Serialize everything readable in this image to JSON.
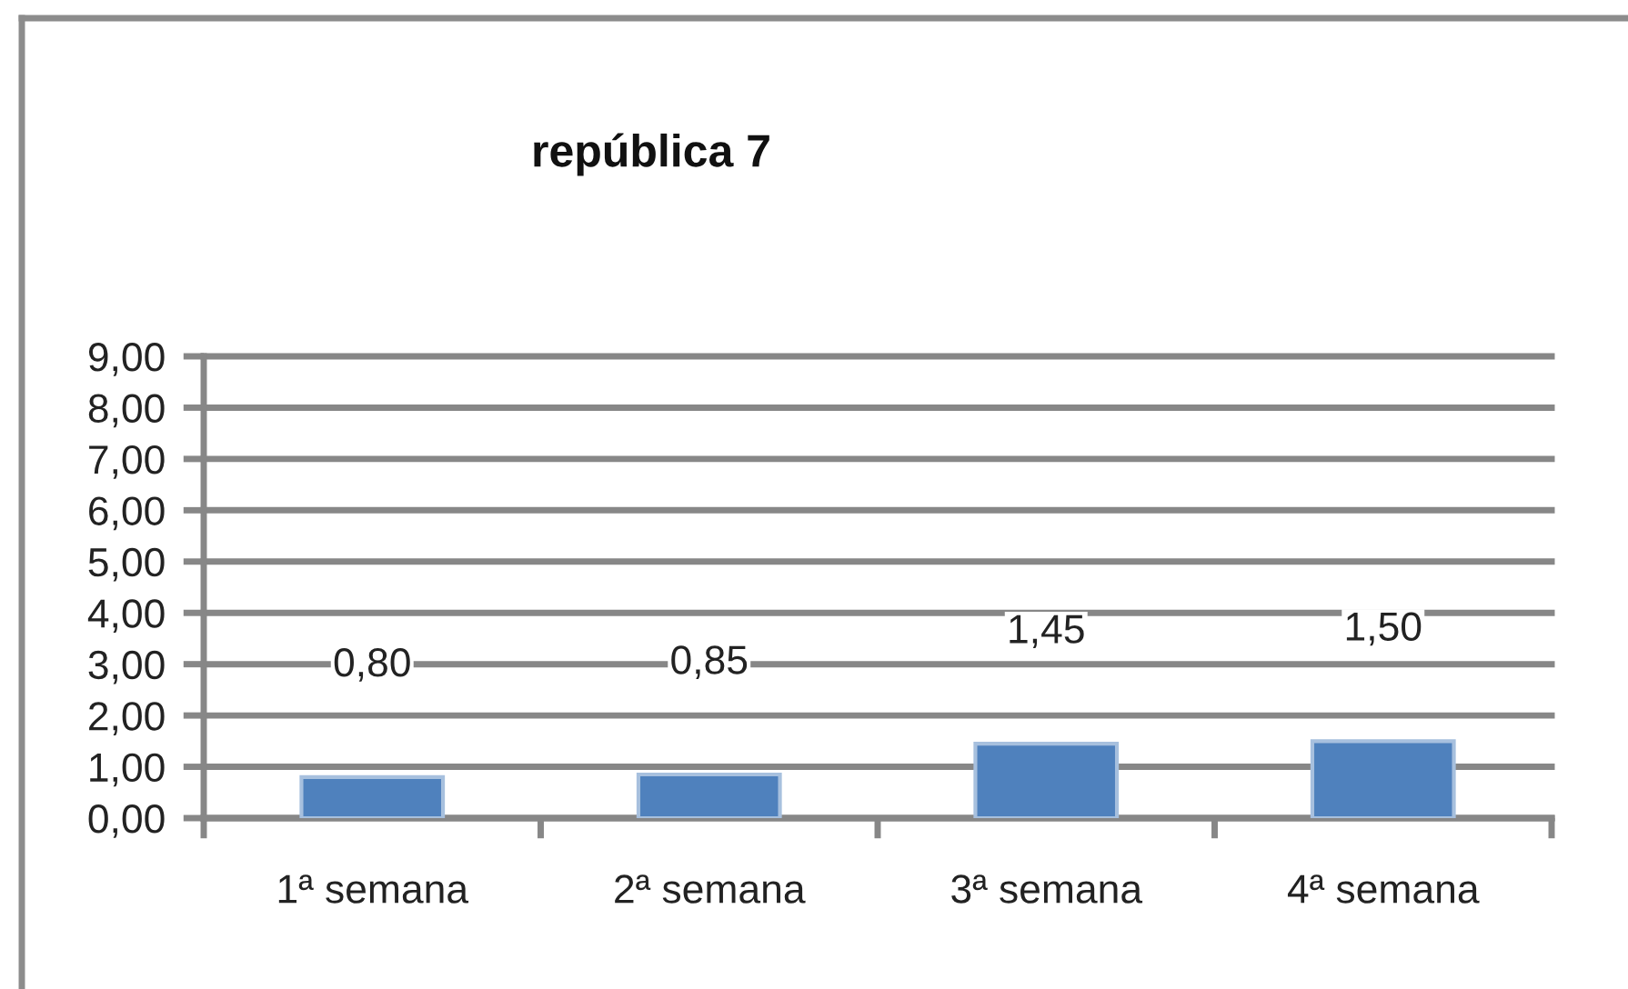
{
  "chart_data": {
    "type": "bar",
    "title": "república 7",
    "categories": [
      "1ª semana",
      "2ª semana",
      "3ª semana",
      "4ª semana"
    ],
    "values": [
      0.8,
      0.85,
      1.45,
      1.5
    ],
    "value_labels": [
      "0,80",
      "0,85",
      "1,45",
      "1,50"
    ],
    "color": "#4f81bd",
    "ylim": [
      0,
      9
    ],
    "yticks": [
      {
        "value": 0,
        "label": "0,00"
      },
      {
        "value": 1,
        "label": "1,00"
      },
      {
        "value": 2,
        "label": "2,00"
      },
      {
        "value": 3,
        "label": "3,00"
      },
      {
        "value": 4,
        "label": "4,00"
      },
      {
        "value": 5,
        "label": "5,00"
      },
      {
        "value": 6,
        "label": "6,00"
      },
      {
        "value": 7,
        "label": "7,00"
      },
      {
        "value": 8,
        "label": "8,00"
      },
      {
        "value": 9,
        "label": "9,00"
      }
    ],
    "grid": "y"
  }
}
